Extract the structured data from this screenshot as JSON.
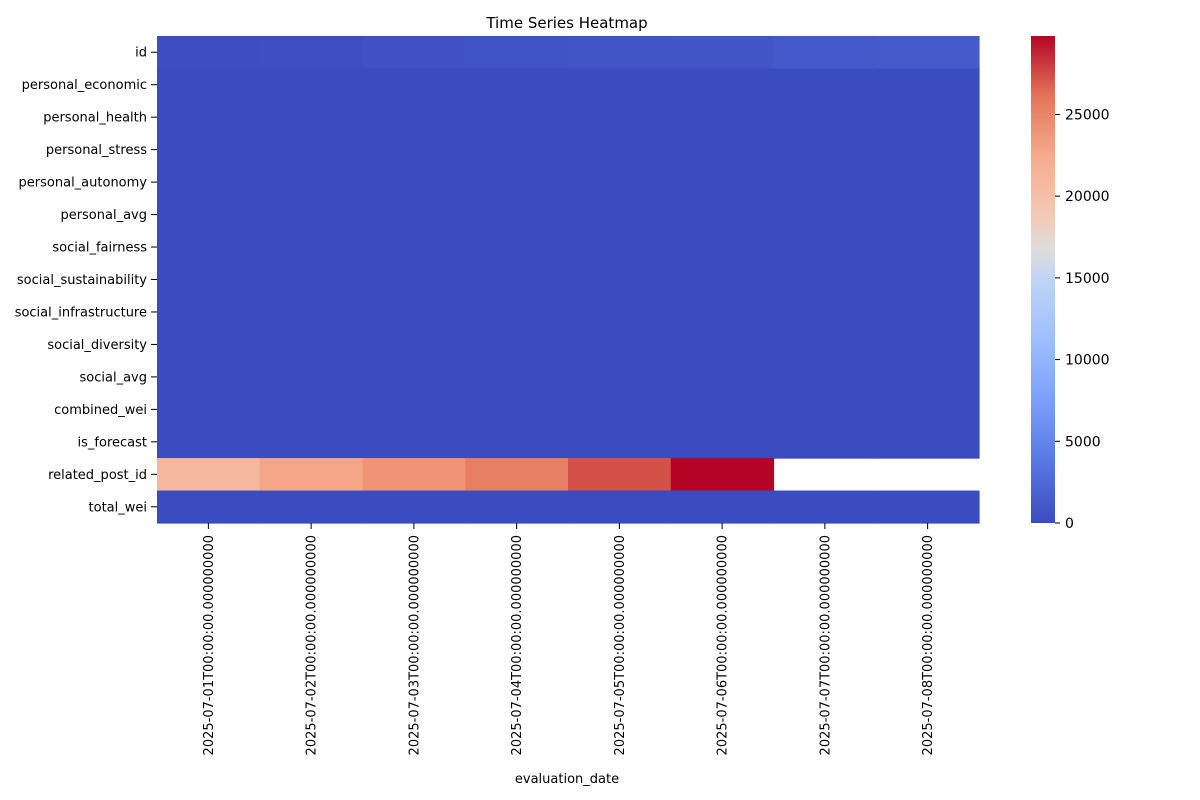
{
  "chart_data": {
    "type": "heatmap",
    "title": "Time Series Heatmap",
    "xlabel": "evaluation_date",
    "ylabel": "",
    "x_categories": [
      "2025-07-01T00:00:00.000000000",
      "2025-07-02T00:00:00.000000000",
      "2025-07-03T00:00:00.000000000",
      "2025-07-04T00:00:00.000000000",
      "2025-07-05T00:00:00.000000000",
      "2025-07-06T00:00:00.000000000",
      "2025-07-07T00:00:00.000000000",
      "2025-07-08T00:00:00.000000000"
    ],
    "y_categories": [
      "id",
      "personal_economic",
      "personal_health",
      "personal_stress",
      "personal_autonomy",
      "personal_avg",
      "social_fairness",
      "social_sustainability",
      "social_infrastructure",
      "social_diversity",
      "social_avg",
      "combined_wei",
      "is_forecast",
      "related_post_id",
      "total_wei"
    ],
    "values": [
      [
        150,
        300,
        450,
        600,
        750,
        900,
        1050,
        1200
      ],
      [
        0,
        0,
        0,
        0,
        0,
        0,
        0,
        0
      ],
      [
        0,
        0,
        0,
        0,
        0,
        0,
        0,
        0
      ],
      [
        0,
        0,
        0,
        0,
        0,
        0,
        0,
        0
      ],
      [
        0,
        0,
        0,
        0,
        0,
        0,
        0,
        0
      ],
      [
        0,
        0,
        0,
        0,
        0,
        0,
        0,
        0
      ],
      [
        0,
        0,
        0,
        0,
        0,
        0,
        0,
        0
      ],
      [
        0,
        0,
        0,
        0,
        0,
        0,
        0,
        0
      ],
      [
        0,
        0,
        0,
        0,
        0,
        0,
        0,
        0
      ],
      [
        0,
        0,
        0,
        0,
        0,
        0,
        0,
        0
      ],
      [
        0,
        0,
        0,
        0,
        0,
        0,
        0,
        0
      ],
      [
        0,
        0,
        0,
        0,
        0,
        0,
        0,
        0
      ],
      [
        0,
        0,
        0,
        0,
        0,
        0,
        0,
        0
      ],
      [
        21000,
        22800,
        24000,
        25400,
        27300,
        29800,
        null,
        null
      ],
      [
        0,
        0,
        0,
        0,
        0,
        0,
        0,
        0
      ]
    ],
    "colormap": "coolwarm",
    "colorbar": {
      "min": 0,
      "max": 29800,
      "ticks": [
        0,
        5000,
        10000,
        15000,
        20000,
        25000
      ]
    },
    "grid": false,
    "legend": "none"
  }
}
